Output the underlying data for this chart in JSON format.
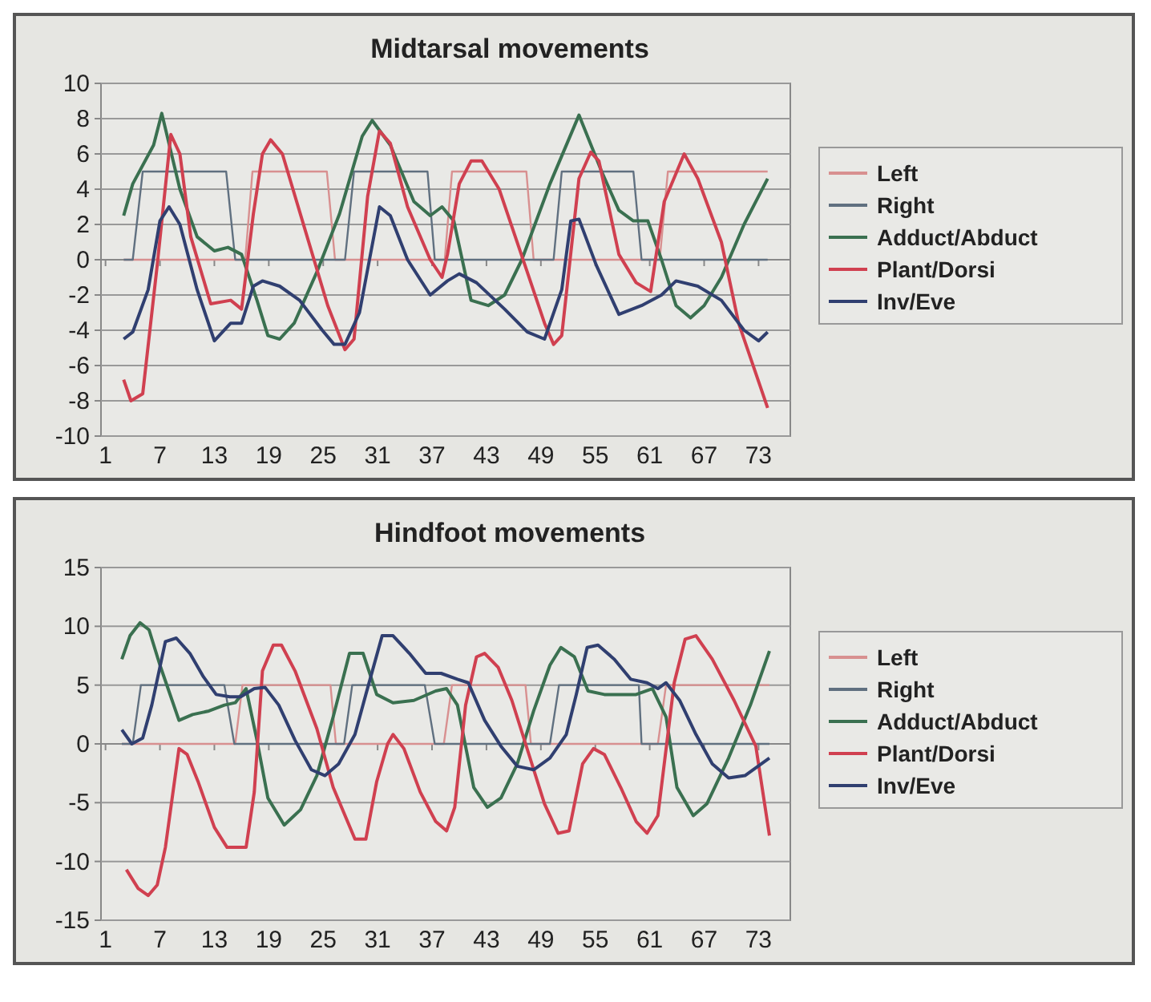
{
  "chart_data": [
    {
      "type": "line",
      "title": "Midtarsal movements",
      "xlim": [
        0.5,
        76.5
      ],
      "xticks": [
        1,
        7,
        13,
        19,
        25,
        31,
        37,
        43,
        49,
        55,
        61,
        67,
        73
      ],
      "ylim": [
        -10,
        10
      ],
      "yticks": [
        -10,
        -8,
        -6,
        -4,
        -2,
        0,
        2,
        4,
        6,
        8,
        10
      ],
      "grid": "y",
      "legend": "right",
      "marker": "none",
      "line_style": "solid",
      "series": [
        {
          "name": "Left",
          "color": "#d89090",
          "x": [
            3,
            16.4,
            17.2,
            25.4,
            26.3,
            38.4,
            39.2,
            47.4,
            48.2,
            62.1,
            63,
            74
          ],
          "values": [
            0,
            0,
            5,
            5,
            0,
            0,
            5,
            5,
            0,
            0,
            5,
            5
          ]
        },
        {
          "name": "Right",
          "color": "#607080",
          "x": [
            3,
            4,
            5.1,
            14.3,
            15.3,
            27.4,
            28.4,
            36.5,
            37.3,
            50.4,
            51.3,
            59.2,
            60.1,
            74
          ],
          "values": [
            0,
            0,
            5,
            5,
            0,
            0,
            5,
            5,
            0,
            0,
            5,
            5,
            0,
            0
          ]
        },
        {
          "name": "Adduct/Abduct",
          "color": "#3a7050",
          "x": [
            3,
            4,
            6.3,
            7.2,
            9.2,
            11.1,
            13,
            14.5,
            16,
            17.7,
            18.9,
            20.2,
            21.8,
            24.3,
            26.8,
            29.3,
            30.4,
            32.4,
            35,
            36.8,
            38.1,
            39.4,
            41.3,
            43.2,
            45,
            46.9,
            50,
            53.2,
            55.7,
            57.6,
            59.2,
            60.8,
            62.3,
            63.9,
            65.5,
            67,
            68.9,
            71.4,
            74
          ],
          "values": [
            2.5,
            4.3,
            6.5,
            8.3,
            4,
            1.3,
            0.5,
            0.7,
            0.3,
            -2.3,
            -4.3,
            -4.5,
            -3.6,
            -0.7,
            2.6,
            7,
            7.9,
            6.5,
            3.3,
            2.5,
            3,
            2.2,
            -2.3,
            -2.6,
            -2,
            0,
            4.3,
            8.2,
            5,
            2.8,
            2.2,
            2.2,
            0,
            -2.6,
            -3.3,
            -2.6,
            -1,
            2,
            4.6
          ]
        },
        {
          "name": "Plant/Dorsi",
          "color": "#d04050",
          "x": [
            3,
            3.8,
            5.1,
            6.7,
            8.2,
            9.2,
            10.4,
            12.6,
            14.8,
            16,
            17.3,
            18.3,
            19.2,
            20.5,
            23,
            25.5,
            27.4,
            28.4,
            29.9,
            31.2,
            32.4,
            34.3,
            36.8,
            38.1,
            38.7,
            40,
            41.3,
            42.5,
            44.4,
            47.5,
            49.4,
            50.4,
            51.3,
            53.2,
            54.5,
            55.4,
            57.6,
            59.5,
            61.1,
            62.6,
            64.8,
            66.3,
            68.9,
            70.8,
            74
          ],
          "values": [
            -6.8,
            -8,
            -7.6,
            -0.3,
            7.1,
            6,
            1.3,
            -2.5,
            -2.3,
            -2.8,
            2.6,
            6,
            6.8,
            6,
            1.7,
            -2.6,
            -5.1,
            -4.5,
            3.6,
            7.3,
            6.6,
            3,
            0,
            -1,
            0.3,
            4.3,
            5.6,
            5.6,
            4,
            -0.7,
            -3.6,
            -4.8,
            -4.3,
            4.6,
            6.1,
            5.6,
            0.3,
            -1.3,
            -1.8,
            3.3,
            6,
            4.6,
            1,
            -3.6,
            -8.4
          ]
        },
        {
          "name": "Inv/Eve",
          "color": "#303f70",
          "x": [
            3,
            4,
            5.7,
            7,
            8,
            9.2,
            11.1,
            13,
            14.8,
            16,
            17.3,
            18.3,
            20.2,
            22.4,
            24.9,
            26.2,
            27.4,
            29,
            31.2,
            32.4,
            34.3,
            36.8,
            38.7,
            40,
            41.9,
            45,
            47.5,
            49.4,
            51.3,
            52.3,
            53.2,
            55.1,
            57.6,
            60.1,
            62.3,
            63.9,
            66.3,
            68.9,
            71.4,
            73,
            74
          ],
          "values": [
            -4.5,
            -4.1,
            -1.7,
            2.2,
            3,
            2,
            -1.7,
            -4.6,
            -3.6,
            -3.6,
            -1.5,
            -1.2,
            -1.5,
            -2.3,
            -4,
            -4.8,
            -4.8,
            -3,
            3,
            2.5,
            0,
            -2,
            -1.2,
            -0.8,
            -1.3,
            -2.8,
            -4.1,
            -4.5,
            -1.7,
            2.2,
            2.3,
            -0.3,
            -3.1,
            -2.6,
            -2,
            -1.2,
            -1.5,
            -2.3,
            -4,
            -4.6,
            -4.1
          ]
        }
      ]
    },
    {
      "type": "line",
      "title": "Hindfoot movements",
      "xlim": [
        0.5,
        76.5
      ],
      "xticks": [
        1,
        7,
        13,
        19,
        25,
        31,
        37,
        43,
        49,
        55,
        61,
        67,
        73
      ],
      "ylim": [
        -15,
        15
      ],
      "yticks": [
        -15,
        -10,
        -5,
        0,
        5,
        10,
        15
      ],
      "grid": "y",
      "legend": "right",
      "marker": "none",
      "line_style": "solid",
      "series": [
        {
          "name": "Left",
          "color": "#d89090",
          "x": [
            2.8,
            15.3,
            16.1,
            25.8,
            26.4,
            38.3,
            39.2,
            47.3,
            47.9,
            61.9,
            62.8,
            74.2
          ],
          "values": [
            0,
            0,
            5,
            5,
            0,
            0,
            5,
            5,
            0,
            0,
            5,
            5
          ]
        },
        {
          "name": "Right",
          "color": "#607080",
          "x": [
            2.8,
            4,
            4.9,
            14.1,
            15.2,
            27.3,
            28.2,
            36.2,
            37.3,
            50,
            51,
            59.8,
            60.1,
            74.2
          ],
          "values": [
            0,
            0,
            5,
            5,
            0,
            0,
            5,
            5,
            0,
            0,
            5,
            5,
            0,
            0
          ]
        },
        {
          "name": "Adduct/Abduct",
          "color": "#3a7050",
          "x": [
            2.8,
            3.7,
            4.8,
            5.8,
            7,
            9.1,
            10.6,
            12.4,
            14.1,
            15.3,
            16.5,
            17.7,
            18.9,
            20.7,
            22.5,
            24.3,
            26.1,
            27.9,
            29.4,
            30.9,
            32.7,
            35,
            37.4,
            38.6,
            39.8,
            41.6,
            43.1,
            44.6,
            46.4,
            48.2,
            50,
            51.2,
            52.7,
            54.2,
            56,
            57.8,
            59.5,
            61.3,
            62.8,
            64,
            65.8,
            67.3,
            69.7,
            72.1,
            74.2
          ],
          "values": [
            7.2,
            9.2,
            10.3,
            9.7,
            6.7,
            2,
            2.5,
            2.8,
            3.3,
            3.5,
            4.7,
            0.3,
            -4.6,
            -6.9,
            -5.6,
            -2.7,
            2.3,
            7.7,
            7.7,
            4.2,
            3.5,
            3.7,
            4.5,
            4.7,
            3.3,
            -3.7,
            -5.4,
            -4.6,
            -1.7,
            2.8,
            6.7,
            8.2,
            7.4,
            4.5,
            4.2,
            4.2,
            4.2,
            4.7,
            2.3,
            -3.7,
            -6.1,
            -5.1,
            -1.2,
            3.3,
            7.9
          ]
        },
        {
          "name": "Plant/Dorsi",
          "color": "#d04050",
          "x": [
            3.3,
            4.6,
            5.7,
            6.7,
            7.6,
            9.1,
            10,
            11.2,
            13,
            14.4,
            16.5,
            17.4,
            18.3,
            19.5,
            20.4,
            21.9,
            24.3,
            26.1,
            28.5,
            29.7,
            30.9,
            32.1,
            32.7,
            33.9,
            35.7,
            37.4,
            38.6,
            39.5,
            40.7,
            41.9,
            42.8,
            44.3,
            45.8,
            47.6,
            49.4,
            50.9,
            52.1,
            53.6,
            54.8,
            56,
            57.8,
            59.5,
            60.7,
            61.9,
            63.7,
            64.9,
            66.1,
            67.9,
            70.3,
            72.7,
            74.2
          ],
          "values": [
            -10.7,
            -12.3,
            -12.9,
            -12,
            -8.8,
            -0.4,
            -0.9,
            -3.2,
            -7.1,
            -8.8,
            -8.8,
            -4.1,
            6.2,
            8.4,
            8.4,
            6.2,
            1.3,
            -3.7,
            -8.1,
            -8.1,
            -3.2,
            0,
            0.8,
            -0.4,
            -4.1,
            -6.6,
            -7.4,
            -5.4,
            3.3,
            7.4,
            7.7,
            6.5,
            3.7,
            -0.7,
            -5.1,
            -7.6,
            -7.4,
            -1.7,
            -0.4,
            -0.9,
            -3.7,
            -6.6,
            -7.6,
            -6.1,
            5.2,
            8.9,
            9.2,
            7.2,
            3.7,
            -0.2,
            -7.8
          ]
        },
        {
          "name": "Inv/Eve",
          "color": "#303f70",
          "x": [
            2.8,
            3.9,
            5.1,
            6.1,
            7.6,
            8.8,
            10.3,
            11.8,
            13.2,
            14.7,
            15.9,
            17.4,
            18.6,
            20.1,
            21.9,
            23.7,
            25.2,
            26.7,
            28.5,
            29.7,
            31.5,
            32.7,
            34.5,
            36.3,
            38,
            39.8,
            41,
            42.8,
            44.6,
            46.4,
            48.2,
            50,
            51.8,
            52.9,
            54.1,
            55.3,
            57.1,
            58.9,
            60.7,
            61.9,
            62.8,
            64.3,
            66.1,
            67.9,
            69.7,
            71.5,
            74.2
          ],
          "values": [
            1.2,
            0,
            0.5,
            3.3,
            8.7,
            9,
            7.7,
            5.7,
            4.2,
            4,
            4,
            4.7,
            4.8,
            3.3,
            0.3,
            -2.2,
            -2.7,
            -1.7,
            0.8,
            4.2,
            9.2,
            9.2,
            7.7,
            6,
            6,
            5.5,
            5.2,
            2,
            -0.2,
            -1.9,
            -2.2,
            -1.2,
            0.8,
            4.2,
            8.2,
            8.4,
            7.2,
            5.5,
            5.2,
            4.7,
            5.2,
            3.7,
            0.8,
            -1.7,
            -2.9,
            -2.7,
            -1.2
          ]
        }
      ]
    }
  ]
}
